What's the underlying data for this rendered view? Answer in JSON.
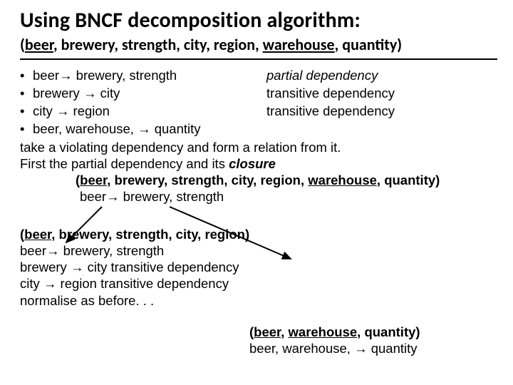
{
  "title": "Using BNCF decomposition algorithm:",
  "subtitle": {
    "parts": [
      {
        "t": "(",
        "u": false
      },
      {
        "t": "beer",
        "u": true
      },
      {
        "t": ", brewery, strength, city, region, ",
        "u": false
      },
      {
        "t": "warehouse",
        "u": true
      },
      {
        "t": ", quantity)",
        "u": false
      }
    ]
  },
  "deps": [
    {
      "left": "beer→ brewery, strength",
      "right": "partial dependency",
      "rightItalic": true
    },
    {
      "left": "brewery → city",
      "right": "transitive dependency",
      "rightItalic": false
    },
    {
      "left": "city → region",
      "right": "transitive dependency",
      "rightItalic": false
    },
    {
      "left": "beer, warehouse, → quantity",
      "right": "",
      "rightItalic": false
    }
  ],
  "line1": "take a violating dependency and form a relation from it.",
  "line2": {
    "pre": "First the partial dependency and its ",
    "em": "closure"
  },
  "closure_relation": {
    "parts": [
      {
        "t": "(",
        "u": false
      },
      {
        "t": "beer",
        "u": true
      },
      {
        "t": ", brewery, strength, city, region, ",
        "u": false
      },
      {
        "t": "warehouse",
        "u": true
      },
      {
        "t": ", quantity)",
        "u": false
      }
    ]
  },
  "closure_dep": "beer→ brewery, strength",
  "lower_left": {
    "relation": {
      "parts": [
        {
          "t": "(",
          "u": false
        },
        {
          "t": "beer",
          "u": true
        },
        {
          "t": ", brewery, strength, city, region)",
          "u": false
        }
      ]
    },
    "lines": [
      "beer→ brewery, strength",
      "brewery → city  transitive dependency",
      "city → region    transitive dependency",
      "normalise as before. . ."
    ]
  },
  "lower_right": {
    "relation": {
      "parts": [
        {
          "t": "(",
          "u": false
        },
        {
          "t": "beer",
          "u": true
        },
        {
          "t": ", ",
          "u": false
        },
        {
          "t": "warehouse",
          "u": true
        },
        {
          "t": ", quantity)",
          "u": false
        }
      ]
    },
    "line": "beer, warehouse, → quantity"
  },
  "arrow_color": "#000000"
}
